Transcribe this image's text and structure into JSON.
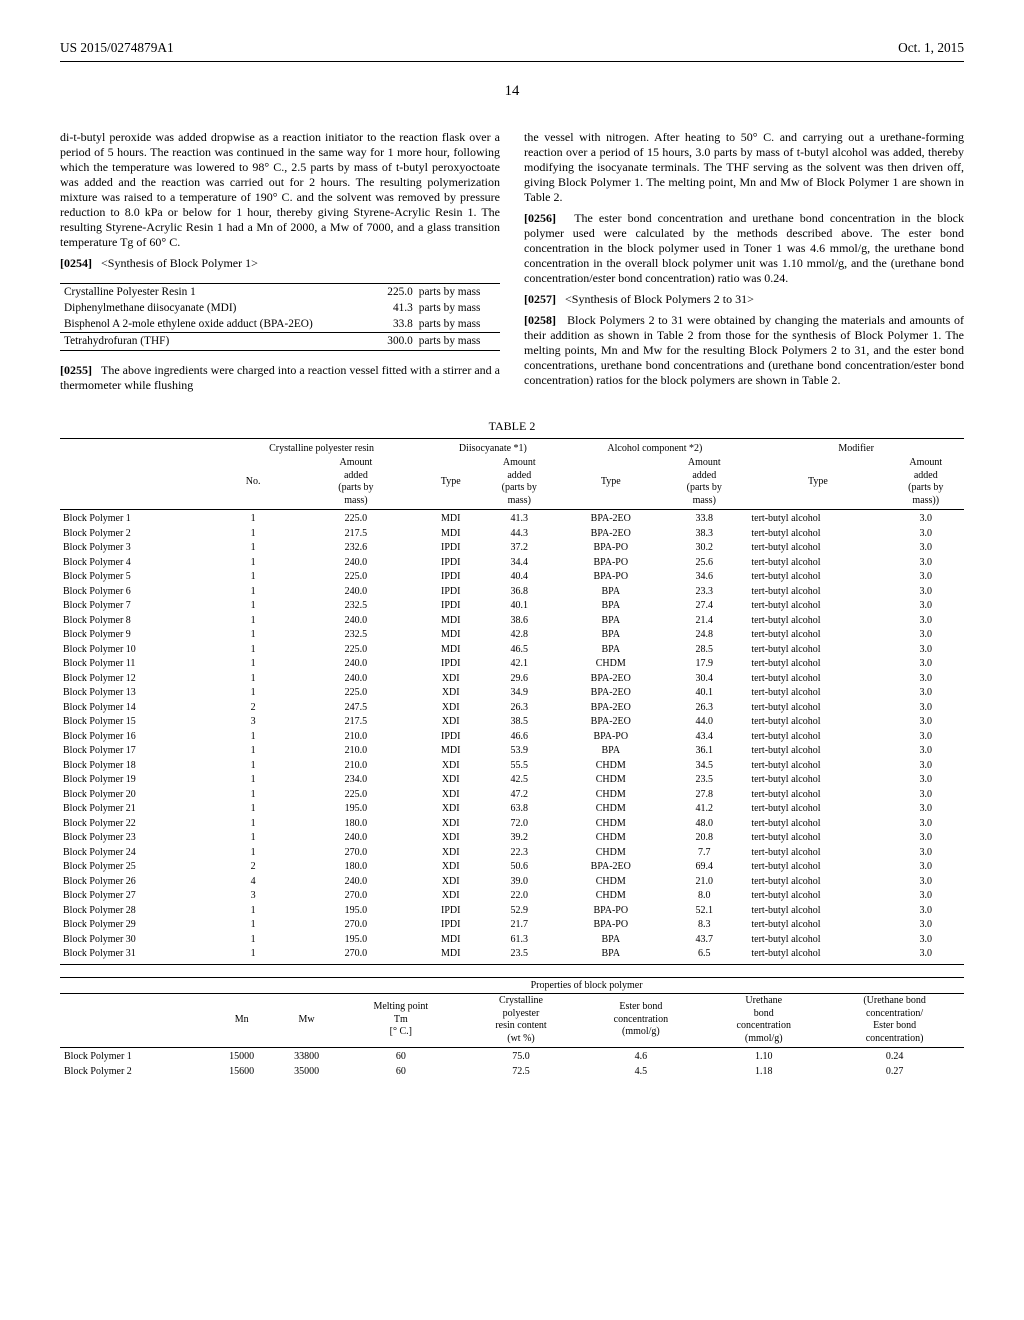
{
  "header": {
    "left": "US 2015/0274879A1",
    "right": "Oct. 1, 2015"
  },
  "page_number": "14",
  "left_column": {
    "p1": "di-t-butyl peroxide was added dropwise as a reaction initiator to the reaction flask over a period of 5 hours. The reaction was continued in the same way for 1 more hour, following which the temperature was lowered to 98° C., 2.5 parts by mass of t-butyl peroxyoctoate was added and the reaction was carried out for 2 hours. The resulting polymerization mixture was raised to a temperature of 190° C. and the solvent was removed by pressure reduction to 8.0 kPa or below for 1 hour, thereby giving Styrene-Acrylic Resin 1. The resulting Styrene-Acrylic Resin 1 had a Mn of 2000, a Mw of 7000, and a glass transition temperature Tg of 60° C.",
    "p2_num": "[0254]",
    "p2": "<Synthesis of Block Polymer 1>",
    "small_table": [
      {
        "name": "Crystalline Polyester Resin 1",
        "amount": "225.0",
        "unit": "parts by mass"
      },
      {
        "name": "Diphenylmethane diisocyanate (MDI)",
        "amount": "41.3",
        "unit": "parts by mass"
      },
      {
        "name": "Bisphenol A 2-mole ethylene oxide adduct (BPA-2EO)",
        "amount": "33.8",
        "unit": "parts by mass"
      },
      {
        "name": "Tetrahydrofuran (THF)",
        "amount": "300.0",
        "unit": "parts by mass"
      }
    ],
    "p3_num": "[0255]",
    "p3": "The above ingredients were charged into a reaction vessel fitted with a stirrer and a thermometer while flushing"
  },
  "right_column": {
    "p1": "the vessel with nitrogen. After heating to 50° C. and carrying out a urethane-forming reaction over a period of 15 hours, 3.0 parts by mass of t-butyl alcohol was added, thereby modifying the isocyanate terminals. The THF serving as the solvent was then driven off, giving Block Polymer 1. The melting point, Mn and Mw of Block Polymer 1 are shown in Table 2.",
    "p2_num": "[0256]",
    "p2": "The ester bond concentration and urethane bond concentration in the block polymer used were calculated by the methods described above. The ester bond concentration in the block polymer used in Toner 1 was 4.6 mmol/g, the urethane bond concentration in the overall block polymer unit was 1.10 mmol/g, and the (urethane bond concentration/ester bond concentration) ratio was 0.24.",
    "p3_num": "[0257]",
    "p3": "<Synthesis of Block Polymers 2 to 31>",
    "p4_num": "[0258]",
    "p4": "Block Polymers 2 to 31 were obtained by changing the materials and amounts of their addition as shown in Table 2 from those for the synthesis of Block Polymer 1. The melting points, Mn and Mw for the resulting Block Polymers 2 to 31, and the ester bond concentrations, urethane bond concentrations and (urethane bond concentration/ester bond concentration) ratios for the block polymers are shown in Table 2."
  },
  "table2": {
    "caption": "TABLE 2",
    "group_headers": {
      "cpr": "Crystalline polyester resin",
      "diiso": "Diisocyanate *1)",
      "alc": "Alcohol component *2)",
      "mod": "Modifier"
    },
    "col_headers": {
      "no": "No.",
      "amt": "Amount added (parts by mass)",
      "type": "Type",
      "amt2": "Amount added (parts by mass))"
    },
    "rows": [
      {
        "lbl": "Block Polymer 1",
        "no": "1",
        "cpr_amt": "225.0",
        "d_type": "MDI",
        "d_amt": "41.3",
        "a_type": "BPA-2EO",
        "a_amt": "33.8",
        "m_type": "tert-butyl alcohol",
        "m_amt": "3.0"
      },
      {
        "lbl": "Block Polymer 2",
        "no": "1",
        "cpr_amt": "217.5",
        "d_type": "MDI",
        "d_amt": "44.3",
        "a_type": "BPA-2EO",
        "a_amt": "38.3",
        "m_type": "tert-butyl alcohol",
        "m_amt": "3.0"
      },
      {
        "lbl": "Block Polymer 3",
        "no": "1",
        "cpr_amt": "232.6",
        "d_type": "IPDI",
        "d_amt": "37.2",
        "a_type": "BPA-PO",
        "a_amt": "30.2",
        "m_type": "tert-butyl alcohol",
        "m_amt": "3.0"
      },
      {
        "lbl": "Block Polymer 4",
        "no": "1",
        "cpr_amt": "240.0",
        "d_type": "IPDI",
        "d_amt": "34.4",
        "a_type": "BPA-PO",
        "a_amt": "25.6",
        "m_type": "tert-butyl alcohol",
        "m_amt": "3.0"
      },
      {
        "lbl": "Block Polymer 5",
        "no": "1",
        "cpr_amt": "225.0",
        "d_type": "IPDI",
        "d_amt": "40.4",
        "a_type": "BPA-PO",
        "a_amt": "34.6",
        "m_type": "tert-butyl alcohol",
        "m_amt": "3.0"
      },
      {
        "lbl": "Block Polymer 6",
        "no": "1",
        "cpr_amt": "240.0",
        "d_type": "IPDI",
        "d_amt": "36.8",
        "a_type": "BPA",
        "a_amt": "23.3",
        "m_type": "tert-butyl alcohol",
        "m_amt": "3.0"
      },
      {
        "lbl": "Block Polymer 7",
        "no": "1",
        "cpr_amt": "232.5",
        "d_type": "IPDI",
        "d_amt": "40.1",
        "a_type": "BPA",
        "a_amt": "27.4",
        "m_type": "tert-butyl alcohol",
        "m_amt": "3.0"
      },
      {
        "lbl": "Block Polymer 8",
        "no": "1",
        "cpr_amt": "240.0",
        "d_type": "MDI",
        "d_amt": "38.6",
        "a_type": "BPA",
        "a_amt": "21.4",
        "m_type": "tert-butyl alcohol",
        "m_amt": "3.0"
      },
      {
        "lbl": "Block Polymer 9",
        "no": "1",
        "cpr_amt": "232.5",
        "d_type": "MDI",
        "d_amt": "42.8",
        "a_type": "BPA",
        "a_amt": "24.8",
        "m_type": "tert-butyl alcohol",
        "m_amt": "3.0"
      },
      {
        "lbl": "Block Polymer 10",
        "no": "1",
        "cpr_amt": "225.0",
        "d_type": "MDI",
        "d_amt": "46.5",
        "a_type": "BPA",
        "a_amt": "28.5",
        "m_type": "tert-butyl alcohol",
        "m_amt": "3.0"
      },
      {
        "lbl": "Block Polymer 11",
        "no": "1",
        "cpr_amt": "240.0",
        "d_type": "IPDI",
        "d_amt": "42.1",
        "a_type": "CHDM",
        "a_amt": "17.9",
        "m_type": "tert-butyl alcohol",
        "m_amt": "3.0"
      },
      {
        "lbl": "Block Polymer 12",
        "no": "1",
        "cpr_amt": "240.0",
        "d_type": "XDI",
        "d_amt": "29.6",
        "a_type": "BPA-2EO",
        "a_amt": "30.4",
        "m_type": "tert-butyl alcohol",
        "m_amt": "3.0"
      },
      {
        "lbl": "Block Polymer 13",
        "no": "1",
        "cpr_amt": "225.0",
        "d_type": "XDI",
        "d_amt": "34.9",
        "a_type": "BPA-2EO",
        "a_amt": "40.1",
        "m_type": "tert-butyl alcohol",
        "m_amt": "3.0"
      },
      {
        "lbl": "Block Polymer 14",
        "no": "2",
        "cpr_amt": "247.5",
        "d_type": "XDI",
        "d_amt": "26.3",
        "a_type": "BPA-2EO",
        "a_amt": "26.3",
        "m_type": "tert-butyl alcohol",
        "m_amt": "3.0"
      },
      {
        "lbl": "Block Polymer 15",
        "no": "3",
        "cpr_amt": "217.5",
        "d_type": "XDI",
        "d_amt": "38.5",
        "a_type": "BPA-2EO",
        "a_amt": "44.0",
        "m_type": "tert-butyl alcohol",
        "m_amt": "3.0"
      },
      {
        "lbl": "Block Polymer 16",
        "no": "1",
        "cpr_amt": "210.0",
        "d_type": "IPDI",
        "d_amt": "46.6",
        "a_type": "BPA-PO",
        "a_amt": "43.4",
        "m_type": "tert-butyl alcohol",
        "m_amt": "3.0"
      },
      {
        "lbl": "Block Polymer 17",
        "no": "1",
        "cpr_amt": "210.0",
        "d_type": "MDI",
        "d_amt": "53.9",
        "a_type": "BPA",
        "a_amt": "36.1",
        "m_type": "tert-butyl alcohol",
        "m_amt": "3.0"
      },
      {
        "lbl": "Block Polymer 18",
        "no": "1",
        "cpr_amt": "210.0",
        "d_type": "XDI",
        "d_amt": "55.5",
        "a_type": "CHDM",
        "a_amt": "34.5",
        "m_type": "tert-butyl alcohol",
        "m_amt": "3.0"
      },
      {
        "lbl": "Block Polymer 19",
        "no": "1",
        "cpr_amt": "234.0",
        "d_type": "XDI",
        "d_amt": "42.5",
        "a_type": "CHDM",
        "a_amt": "23.5",
        "m_type": "tert-butyl alcohol",
        "m_amt": "3.0"
      },
      {
        "lbl": "Block Polymer 20",
        "no": "1",
        "cpr_amt": "225.0",
        "d_type": "XDI",
        "d_amt": "47.2",
        "a_type": "CHDM",
        "a_amt": "27.8",
        "m_type": "tert-butyl alcohol",
        "m_amt": "3.0"
      },
      {
        "lbl": "Block Polymer 21",
        "no": "1",
        "cpr_amt": "195.0",
        "d_type": "XDI",
        "d_amt": "63.8",
        "a_type": "CHDM",
        "a_amt": "41.2",
        "m_type": "tert-butyl alcohol",
        "m_amt": "3.0"
      },
      {
        "lbl": "Block Polymer 22",
        "no": "1",
        "cpr_amt": "180.0",
        "d_type": "XDI",
        "d_amt": "72.0",
        "a_type": "CHDM",
        "a_amt": "48.0",
        "m_type": "tert-butyl alcohol",
        "m_amt": "3.0"
      },
      {
        "lbl": "Block Polymer 23",
        "no": "1",
        "cpr_amt": "240.0",
        "d_type": "XDI",
        "d_amt": "39.2",
        "a_type": "CHDM",
        "a_amt": "20.8",
        "m_type": "tert-butyl alcohol",
        "m_amt": "3.0"
      },
      {
        "lbl": "Block Polymer 24",
        "no": "1",
        "cpr_amt": "270.0",
        "d_type": "XDI",
        "d_amt": "22.3",
        "a_type": "CHDM",
        "a_amt": "7.7",
        "m_type": "tert-butyl alcohol",
        "m_amt": "3.0"
      },
      {
        "lbl": "Block Polymer 25",
        "no": "2",
        "cpr_amt": "180.0",
        "d_type": "XDI",
        "d_amt": "50.6",
        "a_type": "BPA-2EO",
        "a_amt": "69.4",
        "m_type": "tert-butyl alcohol",
        "m_amt": "3.0"
      },
      {
        "lbl": "Block Polymer 26",
        "no": "4",
        "cpr_amt": "240.0",
        "d_type": "XDI",
        "d_amt": "39.0",
        "a_type": "CHDM",
        "a_amt": "21.0",
        "m_type": "tert-butyl alcohol",
        "m_amt": "3.0"
      },
      {
        "lbl": "Block Polymer 27",
        "no": "3",
        "cpr_amt": "270.0",
        "d_type": "XDI",
        "d_amt": "22.0",
        "a_type": "CHDM",
        "a_amt": "8.0",
        "m_type": "tert-butyl alcohol",
        "m_amt": "3.0"
      },
      {
        "lbl": "Block Polymer 28",
        "no": "1",
        "cpr_amt": "195.0",
        "d_type": "IPDI",
        "d_amt": "52.9",
        "a_type": "BPA-PO",
        "a_amt": "52.1",
        "m_type": "tert-butyl alcohol",
        "m_amt": "3.0"
      },
      {
        "lbl": "Block Polymer 29",
        "no": "1",
        "cpr_amt": "270.0",
        "d_type": "IPDI",
        "d_amt": "21.7",
        "a_type": "BPA-PO",
        "a_amt": "8.3",
        "m_type": "tert-butyl alcohol",
        "m_amt": "3.0"
      },
      {
        "lbl": "Block Polymer 30",
        "no": "1",
        "cpr_amt": "195.0",
        "d_type": "MDI",
        "d_amt": "61.3",
        "a_type": "BPA",
        "a_amt": "43.7",
        "m_type": "tert-butyl alcohol",
        "m_amt": "3.0"
      },
      {
        "lbl": "Block Polymer 31",
        "no": "1",
        "cpr_amt": "270.0",
        "d_type": "MDI",
        "d_amt": "23.5",
        "a_type": "BPA",
        "a_amt": "6.5",
        "m_type": "tert-butyl alcohol",
        "m_amt": "3.0"
      }
    ],
    "sub_caption": "Properties of block polymer",
    "sub_headers": {
      "mn": "Mn",
      "mw": "Mw",
      "mp": "Melting point Tm [° C.]",
      "cpr": "Crystalline polyester resin content (wt %)",
      "ester": "Ester bond concentration (mmol/g)",
      "ureth": "Urethane bond concentration (mmol/g)",
      "ratio": "(Urethane bond concentration/ Ester bond concentration)"
    },
    "sub_rows": [
      {
        "lbl": "Block Polymer 1",
        "mn": "15000",
        "mw": "33800",
        "mp": "60",
        "cpr": "75.0",
        "ester": "4.6",
        "ureth": "1.10",
        "ratio": "0.24"
      },
      {
        "lbl": "Block Polymer 2",
        "mn": "15600",
        "mw": "35000",
        "mp": "60",
        "cpr": "72.5",
        "ester": "4.5",
        "ureth": "1.18",
        "ratio": "0.27"
      }
    ]
  }
}
